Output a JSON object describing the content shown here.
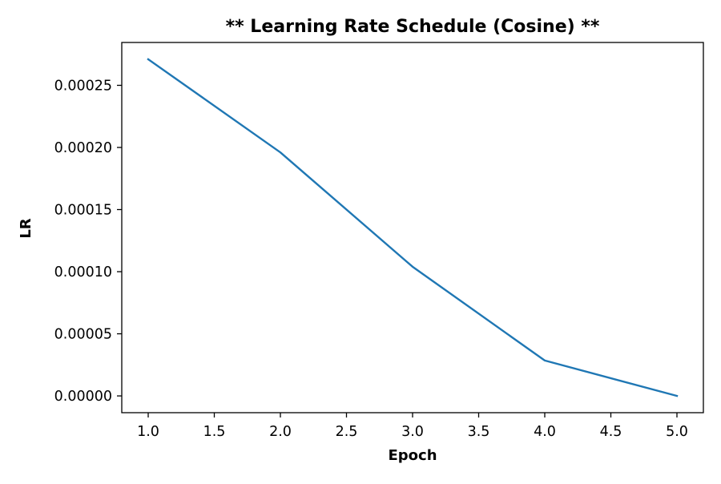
{
  "chart_data": {
    "type": "line",
    "title": "** Learning Rate Schedule (Cosine) **",
    "xlabel": "Epoch",
    "ylabel": "LR",
    "x": [
      1.0,
      2.0,
      3.0,
      4.0,
      5.0
    ],
    "series": [
      {
        "values": [
          0.000271,
          0.000196,
          0.000104,
          2.85e-05,
          0.0
        ]
      }
    ],
    "xlim": [
      0.8,
      5.2
    ],
    "ylim": [
      -1.35e-05,
      0.0002845
    ],
    "xticks": [
      1.0,
      1.5,
      2.0,
      2.5,
      3.0,
      3.5,
      4.0,
      4.5,
      5.0
    ],
    "xtick_labels": [
      "1.0",
      "1.5",
      "2.0",
      "2.5",
      "3.0",
      "3.5",
      "4.0",
      "4.5",
      "5.0"
    ],
    "yticks": [
      0.0,
      5e-05,
      0.0001,
      0.00015,
      0.0002,
      0.00025
    ],
    "ytick_labels": [
      "0.00000",
      "0.00005",
      "0.00010",
      "0.00015",
      "0.00020",
      "0.00025"
    ],
    "grid": false,
    "legend": "none",
    "colors": {
      "line": "#1f77b4",
      "axes": "#000000",
      "background": "#ffffff"
    }
  }
}
